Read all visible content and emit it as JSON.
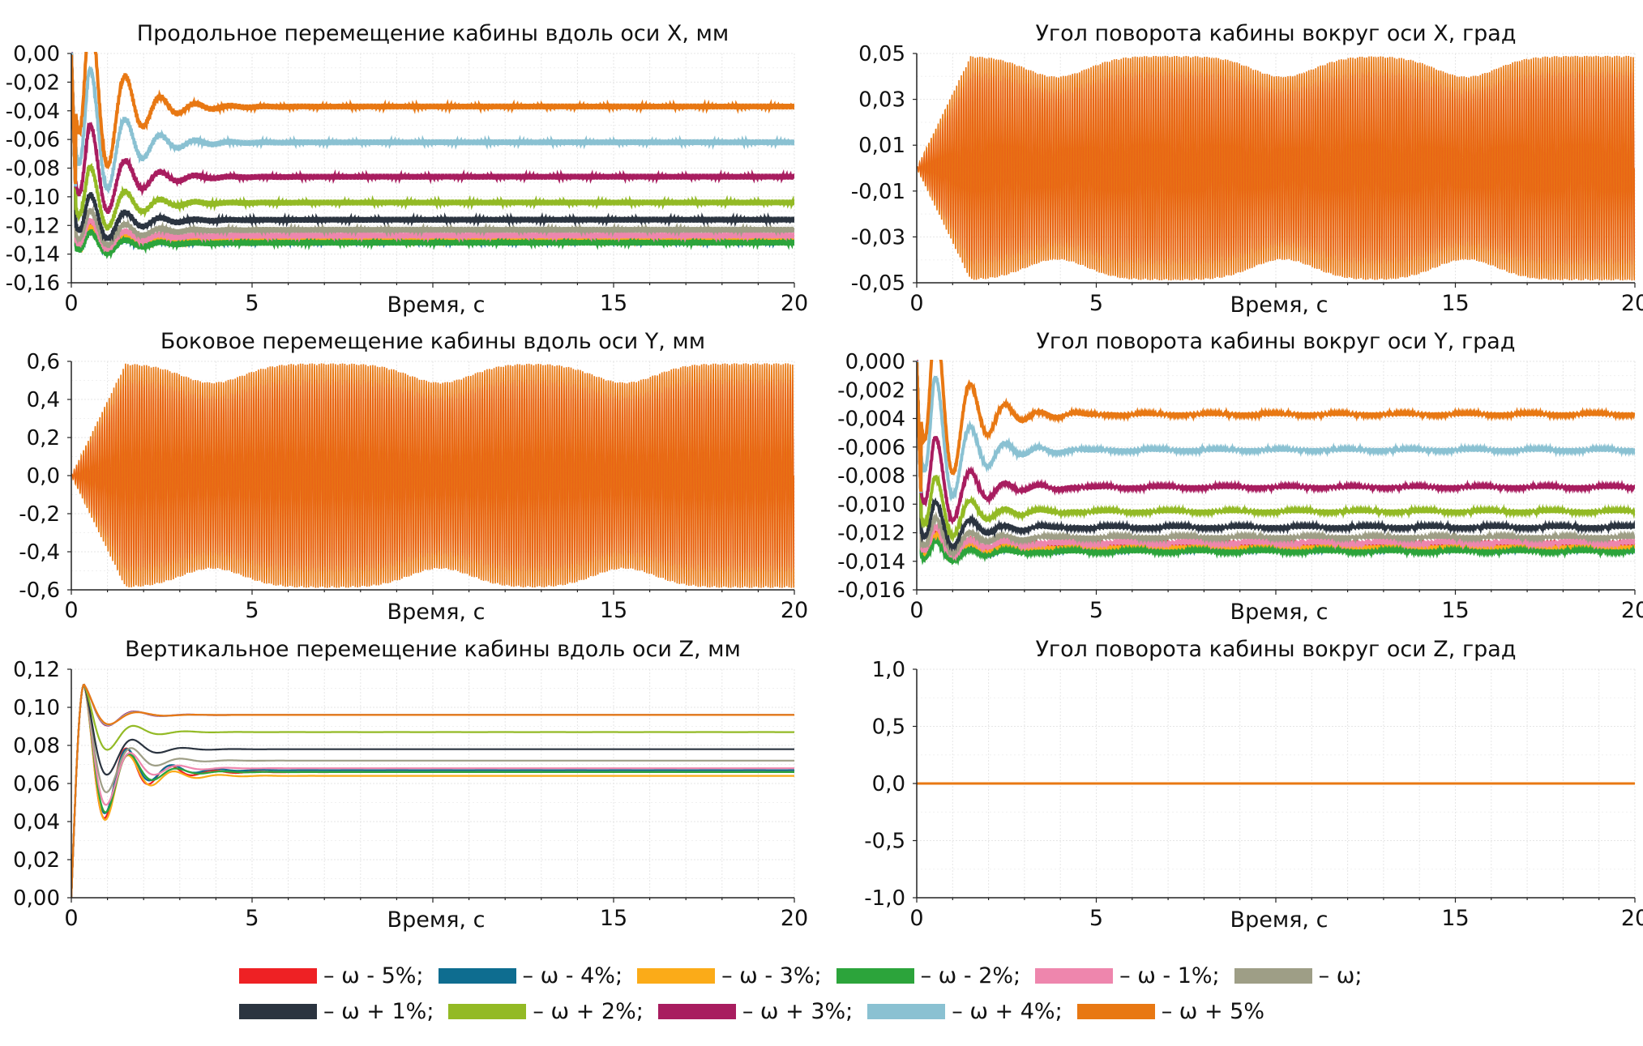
{
  "chart_data": [
    {
      "type": "line",
      "title": "Продольное перемещение кабины вдоль оси X, мм",
      "xlabel": "Время, с",
      "xlim": [
        0,
        20
      ],
      "xticks": [
        0,
        5,
        15,
        20
      ],
      "ylim": [
        -0.16,
        0.0
      ],
      "yticks": [
        "0,00",
        "-0,02",
        "-0,04",
        "-0,06",
        "-0,08",
        "-0,10",
        "-0,12",
        "-0,14",
        "-0,16"
      ],
      "grid": true,
      "pattern": "settling",
      "series_ref": "legend",
      "settled": [
        -0.129,
        -0.131,
        -0.13,
        -0.132,
        -0.127,
        -0.123,
        -0.116,
        -0.104,
        -0.086,
        -0.062,
        -0.037
      ],
      "peak": -0.148,
      "ripple": 0.002
    },
    {
      "type": "line",
      "title": "Угол поворота кабины вокруг оси X, град",
      "xlabel": "Время, с",
      "xlim": [
        0,
        20
      ],
      "xticks": [
        0,
        5,
        15,
        20
      ],
      "ylim": [
        -0.05,
        0.05
      ],
      "yticks": [
        "0,05",
        "0,03",
        "0,01",
        "-0,01",
        "-0,03",
        "-0,05"
      ],
      "grid": true,
      "pattern": "oscillation",
      "amplitude_max": 0.049,
      "amplitude_min": 0.04,
      "beat_centers": [
        3.9,
        10.2,
        15.3
      ]
    },
    {
      "type": "line",
      "title": "Боковое перемещение кабины вдоль оси Y, мм",
      "xlabel": "Время, с",
      "xlim": [
        0,
        20
      ],
      "xticks": [
        0,
        5,
        15,
        20
      ],
      "ylim": [
        -0.6,
        0.6
      ],
      "yticks": [
        "0,6",
        "0,4",
        "0,2",
        "0,0",
        "-0,2",
        "-0,4",
        "-0,6"
      ],
      "grid": true,
      "pattern": "oscillation",
      "amplitude_max": 0.59,
      "amplitude_min": 0.49,
      "beat_centers": [
        3.9,
        10.2,
        15.3
      ]
    },
    {
      "type": "line",
      "title": "Угол поворота кабины вокруг оси Y, град",
      "xlabel": "Время, с",
      "xlim": [
        0,
        20
      ],
      "xticks": [
        0,
        5,
        15,
        20
      ],
      "ylim": [
        -0.016,
        0.0
      ],
      "yticks": [
        "0,000",
        "-0,002",
        "-0,004",
        "-0,006",
        "-0,008",
        "-0,010",
        "-0,012",
        "-0,014",
        "-0,016"
      ],
      "grid": true,
      "pattern": "settling",
      "series_ref": "legend",
      "settled": [
        -0.0129,
        -0.0131,
        -0.013,
        -0.0133,
        -0.0127,
        -0.0123,
        -0.0116,
        -0.0105,
        -0.0088,
        -0.0062,
        -0.0037
      ],
      "peak": -0.0148,
      "ripple": 0.0001
    },
    {
      "type": "line",
      "title": "Вертикальное перемещение кабины вдоль оси Z, мм",
      "xlabel": "Время, с",
      "xlim": [
        0,
        20
      ],
      "xticks": [
        0,
        5,
        15,
        20
      ],
      "ylim": [
        0.0,
        0.12
      ],
      "yticks": [
        "0,12",
        "0,10",
        "0,08",
        "0,06",
        "0,04",
        "0,02",
        "0,00"
      ],
      "grid": true,
      "pattern": "overshoot",
      "series_ref": "legend",
      "settled": [
        0.066,
        0.067,
        0.064,
        0.066,
        0.068,
        0.072,
        0.078,
        0.087,
        0.096,
        0.096,
        0.096
      ],
      "peak": 0.112
    },
    {
      "type": "line",
      "title": "Угол поворота кабины вокруг оси Z, град",
      "xlabel": "Время, с",
      "xlim": [
        0,
        20
      ],
      "xticks": [
        0,
        5,
        15,
        20
      ],
      "ylim": [
        -1.0,
        1.0
      ],
      "yticks": [
        "1,0",
        "0,5",
        "0,0",
        "-0,5",
        "-1,0"
      ],
      "grid": true,
      "pattern": "flat",
      "value": 0.0
    }
  ],
  "legend": {
    "rows": [
      [
        {
          "label": "– ω - 5%;",
          "color": "#ee2124"
        },
        {
          "label": "– ω - 4%;",
          "color": "#0e6d90"
        },
        {
          "label": "– ω - 3%;",
          "color": "#fbab18"
        },
        {
          "label": "– ω - 2%;",
          "color": "#2ca43b"
        },
        {
          "label": "– ω - 1%;",
          "color": "#ee86ad"
        },
        {
          "label": "– ω;",
          "color": "#9e9e86"
        }
      ],
      [
        {
          "label": "– ω + 1%;",
          "color": "#2b3440"
        },
        {
          "label": "– ω + 2%;",
          "color": "#93ba25"
        },
        {
          "label": "– ω + 3%;",
          "color": "#a81d5f"
        },
        {
          "label": "– ω + 4%;",
          "color": "#8ac1d2"
        },
        {
          "label": "– ω + 5%",
          "color": "#e87813"
        }
      ]
    ]
  }
}
